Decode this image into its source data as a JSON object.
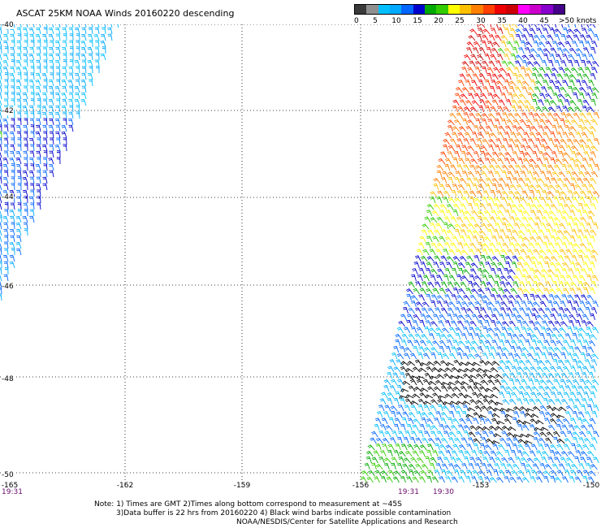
{
  "title": "ASCAT 25KM NOAA Winds 20160220 descending",
  "legend": {
    "colors": [
      "#3a3a3a",
      "#909090",
      "#00bfff",
      "#00aaff",
      "#0066ff",
      "#0000cc",
      "#00aa00",
      "#33cc00",
      "#ffff00",
      "#ffc000",
      "#ff7f00",
      "#ff4000",
      "#ee0000",
      "#cc0000",
      "#ff00ff",
      "#cc00cc",
      "#8800cc",
      "#440088"
    ],
    "labels": [
      "0",
      "5",
      "10",
      "15",
      "20",
      "25",
      "30",
      "35",
      "40",
      "45",
      ">50 knots"
    ]
  },
  "axes": {
    "lat_labels": [
      "-40",
      "-42",
      "-44",
      "-46",
      "-48",
      "-50"
    ],
    "lon_labels": [
      "-165",
      "-162",
      "-159",
      "-156",
      "-153",
      "-150"
    ]
  },
  "times": {
    "left": "19:31",
    "center_a": "19:31",
    "center_b": "19:30"
  },
  "notes": {
    "line1": "Note: 1) Times are GMT 2)Times along bottom correspond to measurement at ~45S",
    "line2": "3)Data buffer is 22 hrs from 20160220 4) Black wind barbs indicate possible contamination",
    "line3": "NOAA/NESDIS/Center for Satellite Applications and Research"
  }
}
